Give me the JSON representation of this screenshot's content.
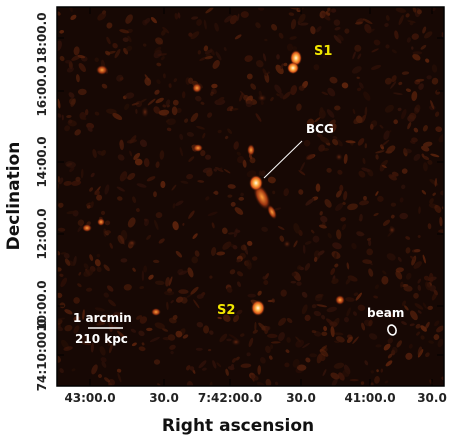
{
  "figure": {
    "xlabel": "Right ascension",
    "ylabel": "Declination",
    "x_ticks": [
      "43:00.0",
      "30.0",
      "7:42:00.0",
      "30.0",
      "41:00.0",
      "30.0"
    ],
    "y_ticks": [
      "74:10:00.0",
      "10:00.0",
      "12:00.0",
      "14:00.0",
      "16:00.0",
      "18:00.0"
    ],
    "annotations": {
      "s1": "S1",
      "s2": "S2",
      "bcg": "BCG",
      "beam": "beam"
    },
    "scalebar": {
      "angular": "1 arcmin",
      "physical": "210 kpc"
    },
    "colors": {
      "background": "#170804",
      "source_label": "#f2e600",
      "annotation": "#ffffff",
      "frame": "#000000"
    },
    "sources": [
      {
        "name": "S1",
        "intensity": 0.9
      },
      {
        "name": "BCG",
        "intensity": 1.0
      },
      {
        "name": "S2",
        "intensity": 0.95
      }
    ]
  }
}
